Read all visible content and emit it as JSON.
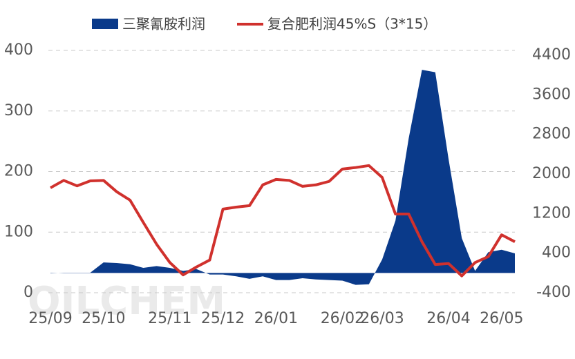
{
  "chart_data": {
    "type": "area-line",
    "categories": [
      "25/09",
      null,
      null,
      null,
      "25/10",
      null,
      null,
      null,
      null,
      "25/11",
      null,
      null,
      null,
      "25/12",
      null,
      null,
      null,
      "26/01",
      null,
      null,
      null,
      null,
      "26/02",
      null,
      null,
      "26/03",
      null,
      null,
      null,
      null,
      "26/04",
      null,
      null,
      null,
      "26/05",
      null
    ],
    "series": [
      {
        "name": "三聚氰胺利润",
        "type": "area",
        "color": "#0a3a8a",
        "axis": "y",
        "values": [
          32,
          33,
          33,
          33,
          50,
          49,
          47,
          41,
          44,
          41,
          36,
          39,
          30,
          30,
          27,
          23,
          27,
          21,
          21,
          24,
          22,
          21,
          20,
          13,
          14,
          55,
          119,
          255,
          368,
          364,
          221,
          90,
          36,
          67,
          71,
          65
        ]
      },
      {
        "name": "复合肥利润45%S（3*15）",
        "type": "line",
        "color": "#d0312d",
        "axis": "y2",
        "values": [
          1720,
          1870,
          1760,
          1860,
          1870,
          1640,
          1470,
          1020,
          580,
          210,
          -40,
          120,
          260,
          1290,
          1330,
          1360,
          1780,
          1890,
          1870,
          1750,
          1780,
          1850,
          2100,
          2130,
          2170,
          1930,
          1190,
          1190,
          630,
          170,
          190,
          -60,
          210,
          330,
          770,
          630
        ]
      }
    ],
    "ylim": [
      0,
      400
    ],
    "yticks": [
      0,
      100,
      200,
      300,
      400
    ],
    "y2lim": [
      -400,
      4400
    ],
    "y2ticks": [
      -400,
      400,
      1200,
      2000,
      2800,
      3600,
      4400
    ],
    "grid": true,
    "legend": "top",
    "watermark": "OILCHEM"
  }
}
